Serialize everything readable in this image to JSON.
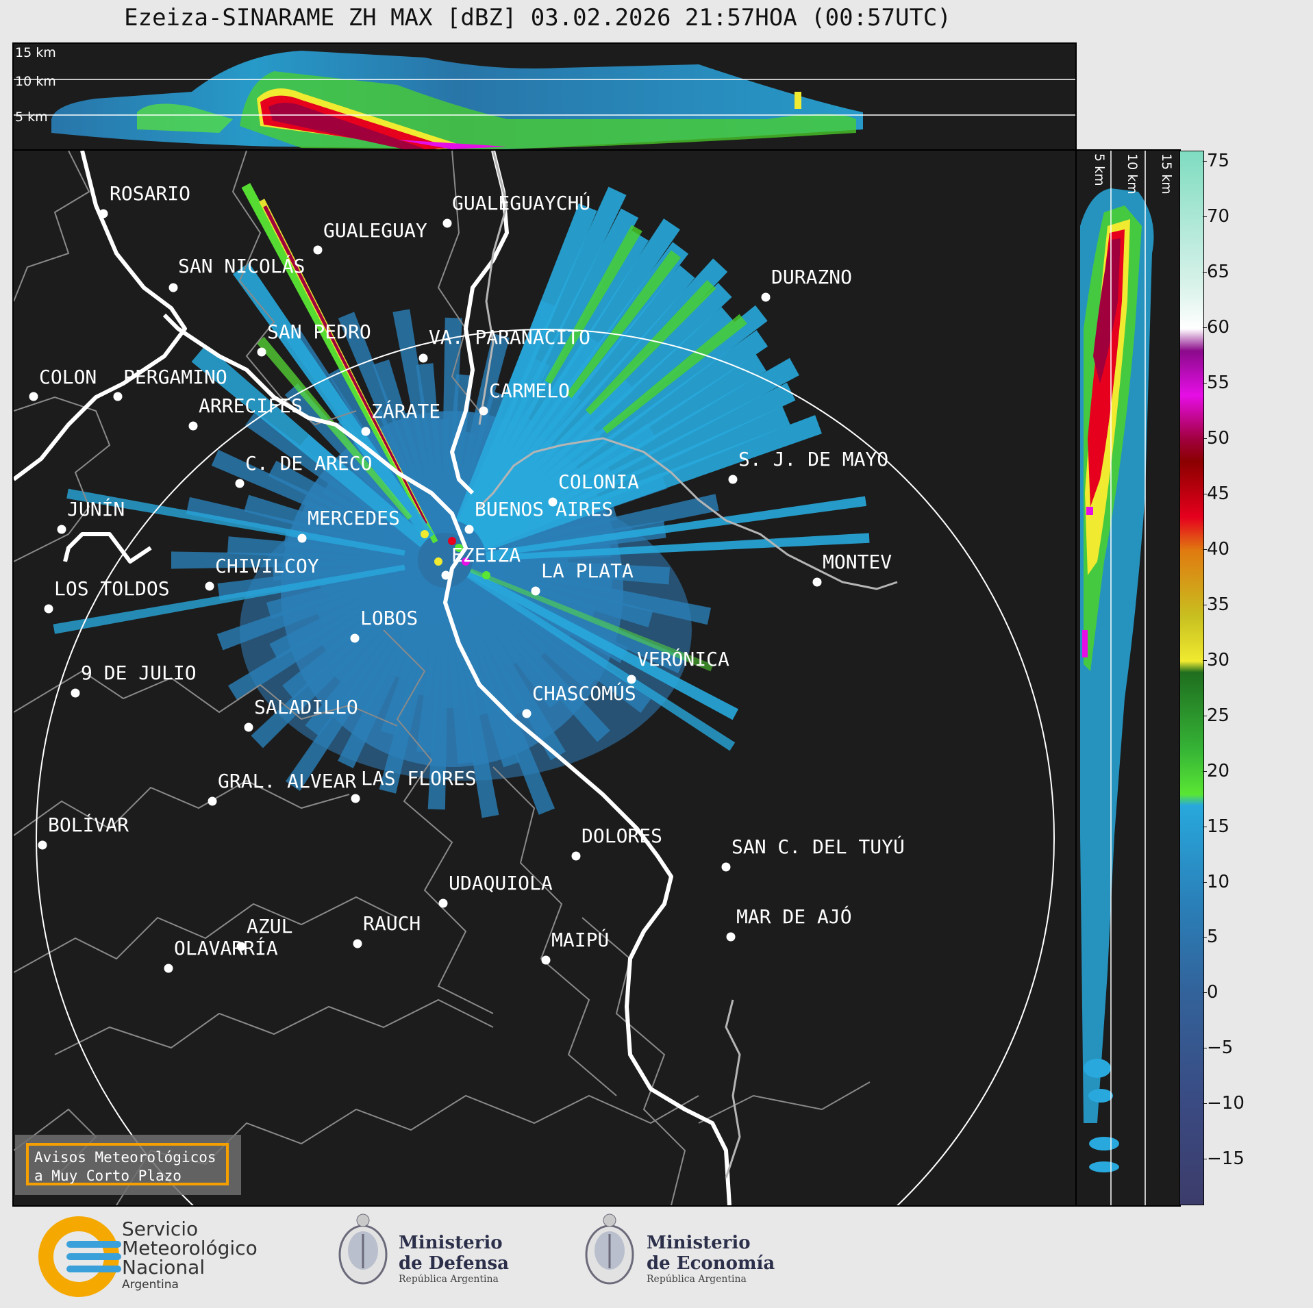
{
  "title": "Ezeiza-SINARAME ZH MAX [dBZ] 03.02.2026 21:57HOA (00:57UTC)",
  "height_labels": [
    "15 km",
    "10 km",
    "5 km"
  ],
  "colorbar": {
    "ticks": [
      "75",
      "70",
      "65",
      "60",
      "55",
      "50",
      "45",
      "40",
      "35",
      "30",
      "25",
      "20",
      "15",
      "10",
      "5",
      "0",
      "−5",
      "−10",
      "−15"
    ],
    "stops": [
      {
        "v": 76,
        "c": "#7fdcc0"
      },
      {
        "v": 64,
        "c": "#d8f2ea"
      },
      {
        "v": 60,
        "c": "#ffffff"
      },
      {
        "v": 58,
        "c": "#8b0a8b"
      },
      {
        "v": 54,
        "c": "#e60ee6"
      },
      {
        "v": 50,
        "c": "#a0003c"
      },
      {
        "v": 48,
        "c": "#8b0000"
      },
      {
        "v": 43,
        "c": "#e6001e"
      },
      {
        "v": 40,
        "c": "#e07a10"
      },
      {
        "v": 34,
        "c": "#c8c020"
      },
      {
        "v": 30,
        "c": "#f0ea30"
      },
      {
        "v": 29,
        "c": "#1f6e1f"
      },
      {
        "v": 22,
        "c": "#36b436"
      },
      {
        "v": 18,
        "c": "#5ae634"
      },
      {
        "v": 17,
        "c": "#28a8dc"
      },
      {
        "v": 8,
        "c": "#2a7fb8"
      },
      {
        "v": 0,
        "c": "#33629a"
      },
      {
        "v": -10,
        "c": "#3a4a82"
      },
      {
        "v": -19,
        "c": "#3c3c6a"
      }
    ]
  },
  "cities": [
    {
      "name": "ROSARIO"
    },
    {
      "name": "GUALEGUAYCHÚ"
    },
    {
      "name": "GUALEGUAY"
    },
    {
      "name": "SAN NICOLÁS"
    },
    {
      "name": "DURAZNO"
    },
    {
      "name": "SAN PEDRO"
    },
    {
      "name": "VA. PARANACITO"
    },
    {
      "name": "COLON"
    },
    {
      "name": "PERGAMINO"
    },
    {
      "name": "CARMELO"
    },
    {
      "name": "ARRECIFES"
    },
    {
      "name": "ZÁRATE"
    },
    {
      "name": "S. J. DE MAYO"
    },
    {
      "name": "C. DE ARECO"
    },
    {
      "name": "COLONIA"
    },
    {
      "name": "JUNÍN"
    },
    {
      "name": "BUENOS AIRES"
    },
    {
      "name": "MERCEDES"
    },
    {
      "name": "MONTEV"
    },
    {
      "name": "EZEIZA"
    },
    {
      "name": "CHIVILCOY"
    },
    {
      "name": "LA PLATA"
    },
    {
      "name": "LOS TOLDOS"
    },
    {
      "name": "LOBOS"
    },
    {
      "name": "VERÓNICA"
    },
    {
      "name": "9 DE JULIO"
    },
    {
      "name": "CHASCOMÚS"
    },
    {
      "name": "SALADILLO"
    },
    {
      "name": "GRAL. ALVEAR"
    },
    {
      "name": "LAS FLORES"
    },
    {
      "name": "BOLÍVAR"
    },
    {
      "name": "DOLORES"
    },
    {
      "name": "SAN C. DEL TUYÚ"
    },
    {
      "name": "UDAQUIOLA"
    },
    {
      "name": "MAR DE AJÓ"
    },
    {
      "name": "RAUCH"
    },
    {
      "name": "AZUL"
    },
    {
      "name": "OLAVARRÍA"
    },
    {
      "name": "MAIPÚ"
    }
  ],
  "avisos": {
    "line1": "Avisos Meteorológicos",
    "line2": "a Muy Corto Plazo"
  },
  "logos": {
    "smn": [
      "Servicio",
      "Meteorológico",
      "Nacional",
      "Argentina"
    ],
    "defensa": {
      "title1": "Ministerio",
      "title2": "de Defensa",
      "sub": "República Argentina"
    },
    "economia": {
      "title1": "Ministerio",
      "title2": "de Economía",
      "sub": "República Argentina"
    }
  }
}
